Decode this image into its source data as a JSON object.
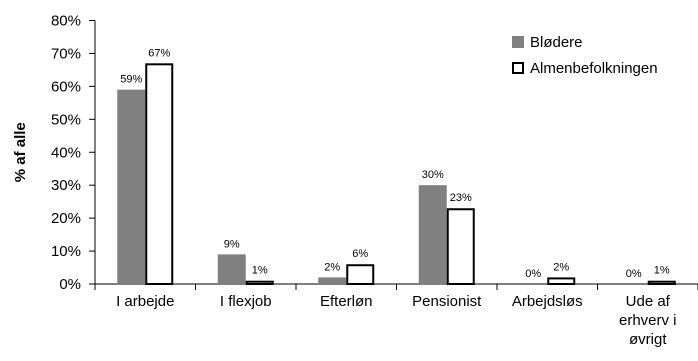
{
  "chart_data": {
    "type": "bar",
    "ylabel": "% af alle",
    "ylim": [
      0,
      80
    ],
    "yticks": [
      "0%",
      "10%",
      "20%",
      "30%",
      "40%",
      "50%",
      "60%",
      "70%",
      "80%"
    ],
    "categories": [
      [
        "I arbejde"
      ],
      [
        "I flexjob"
      ],
      [
        "Efterløn"
      ],
      [
        "Pensionist"
      ],
      [
        "Arbejdsløs"
      ],
      [
        "Ude af",
        "erhverv i",
        "øvrigt"
      ]
    ],
    "series": [
      {
        "name": "Blødere",
        "values": [
          59,
          9,
          2,
          30,
          0,
          0
        ],
        "labels": [
          "59%",
          "9%",
          "2%",
          "30%",
          "0%",
          "0%"
        ],
        "color": "#808080"
      },
      {
        "name": "Almenbefolkningen",
        "values": [
          67,
          1,
          6,
          23,
          2,
          1
        ],
        "labels": [
          "67%",
          "1%",
          "6%",
          "23%",
          "2%",
          "1%"
        ],
        "color": "#ffffff"
      }
    ],
    "legend_position": "top-right",
    "grid": false
  }
}
